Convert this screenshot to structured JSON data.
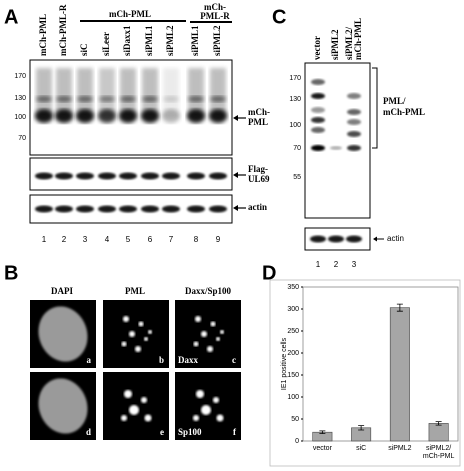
{
  "panels": {
    "A": {
      "label": "A",
      "lane_headers": [
        "mCh-PML",
        "mCh-PML-R",
        "siC",
        "siLeer",
        "siDaxx1",
        "siPML1",
        "siPML2",
        "siPML1",
        "siPML2"
      ],
      "group_1": "mCh-PML",
      "group_2_lines": [
        "mCh-",
        "PML-R"
      ],
      "markers": [
        "170",
        "130",
        "100",
        "70"
      ],
      "blot_1_lines": [
        "mCh-",
        "PML"
      ],
      "blot_2_lines": [
        "Flag-",
        "UL69"
      ],
      "blot_3": "actin",
      "lane_numbers": [
        "1",
        "2",
        "3",
        "4",
        "5",
        "6",
        "7",
        "8",
        "9"
      ]
    },
    "B": {
      "label": "B",
      "headers": [
        "DAPI",
        "PML",
        "Daxx/Sp100"
      ],
      "letters": [
        "a",
        "b",
        "c",
        "d",
        "e",
        "f"
      ],
      "stain_1": "Daxx",
      "stain_2": "Sp100"
    },
    "C": {
      "label": "C",
      "lane_headers": [
        "vector",
        "siPML2",
        "siPML2/",
        "mCh-PML"
      ],
      "markers": [
        "170",
        "130",
        "100",
        "70",
        "55"
      ],
      "bracket_lines": [
        "PML/",
        "mCh-PML"
      ],
      "blot_2": "actin",
      "lane_numbers": [
        "1",
        "2",
        "3"
      ]
    },
    "D": {
      "label": "D"
    }
  },
  "chart_data": {
    "type": "bar",
    "categories": [
      "vector",
      "siC",
      "siPML2",
      "siPML2/ mCh-PML"
    ],
    "values": [
      20,
      30,
      303,
      40
    ],
    "errors": [
      3,
      5,
      8,
      4
    ],
    "color": "#a6a6a6",
    "y_label": "IE1 positive cells",
    "ylim": [
      0,
      350
    ],
    "yticks": [
      0,
      50,
      100,
      150,
      200,
      250,
      300,
      350
    ],
    "grid": false
  }
}
